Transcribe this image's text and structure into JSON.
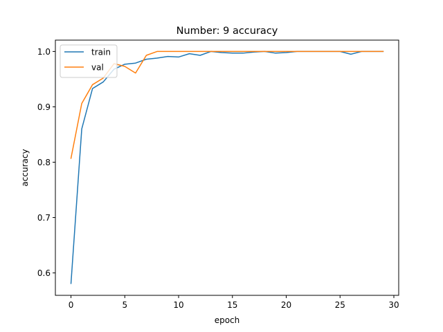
{
  "chart_data": {
    "type": "line",
    "title": "Number: 9 accuracy",
    "xlabel": "epoch",
    "ylabel": "accuracy",
    "xlim": [
      -1.45,
      30.45
    ],
    "ylim": [
      0.5595,
      1.0205
    ],
    "xticks": [
      0,
      5,
      10,
      15,
      20,
      25,
      30
    ],
    "yticks": [
      0.6,
      0.7,
      0.8,
      0.9,
      1.0
    ],
    "grid": false,
    "legend": "top-left",
    "x": [
      0,
      1,
      2,
      3,
      4,
      5,
      6,
      7,
      8,
      9,
      10,
      11,
      12,
      13,
      14,
      15,
      16,
      17,
      18,
      19,
      20,
      21,
      22,
      23,
      24,
      25,
      26,
      27,
      28,
      29
    ],
    "series": [
      {
        "name": "train",
        "color": "#1f77b4",
        "values": [
          0.581,
          0.86,
          0.933,
          0.945,
          0.968,
          0.977,
          0.979,
          0.986,
          0.988,
          0.991,
          0.99,
          0.996,
          0.993,
          1.0,
          0.998,
          0.997,
          0.997,
          0.999,
          1.0,
          0.997,
          0.998,
          1.0,
          1.0,
          1.0,
          1.0,
          1.0,
          0.995,
          1.0,
          1.0,
          1.0
        ]
      },
      {
        "name": "val",
        "color": "#ff7f0e",
        "values": [
          0.807,
          0.906,
          0.94,
          0.952,
          0.978,
          0.973,
          0.961,
          0.993,
          1.0,
          1.0,
          1.0,
          1.0,
          1.0,
          1.0,
          1.0,
          1.0,
          1.0,
          1.0,
          1.0,
          1.0,
          1.0,
          1.0,
          1.0,
          1.0,
          1.0,
          1.0,
          1.0,
          1.0,
          1.0,
          1.0
        ]
      }
    ]
  }
}
